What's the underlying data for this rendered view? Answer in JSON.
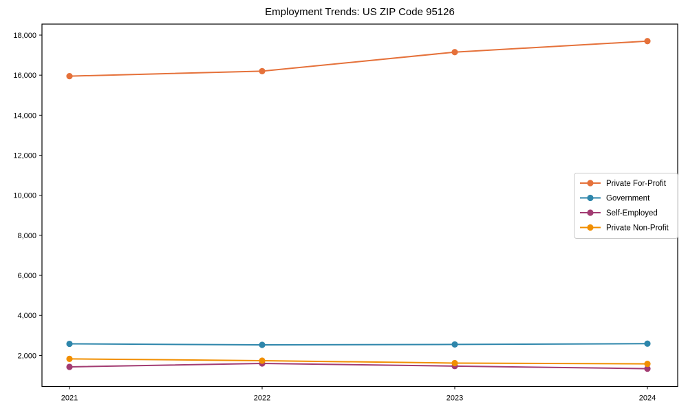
{
  "figure": {
    "background": "#ffffff",
    "axis_color": "#000000",
    "tick_label_color": "#000000",
    "legend": {
      "border_color": "#c9c9c9",
      "background": "#ffffff",
      "position": "right-center"
    }
  },
  "chart_data": {
    "type": "line",
    "title": "Employment Trends: US ZIP Code 95126",
    "xlabel": "",
    "ylabel": "",
    "categories": [
      "2021",
      "2022",
      "2023",
      "2024"
    ],
    "series": [
      {
        "name": "Private For-Profit",
        "color": "#E5713A",
        "values": [
          15950,
          16200,
          17150,
          17700
        ]
      },
      {
        "name": "Government",
        "color": "#2E86AB",
        "values": [
          2580,
          2530,
          2550,
          2590
        ]
      },
      {
        "name": "Self-Employed",
        "color": "#A23B72",
        "values": [
          1430,
          1600,
          1470,
          1340
        ]
      },
      {
        "name": "Private Non-Profit",
        "color": "#F18F01",
        "values": [
          1830,
          1740,
          1620,
          1580
        ]
      }
    ],
    "ylim": [
      450,
      18550
    ],
    "yticks": [
      2000,
      4000,
      6000,
      8000,
      10000,
      12000,
      14000,
      16000,
      18000
    ],
    "grid": false,
    "marker": "circle",
    "legend_position": "right-center"
  }
}
